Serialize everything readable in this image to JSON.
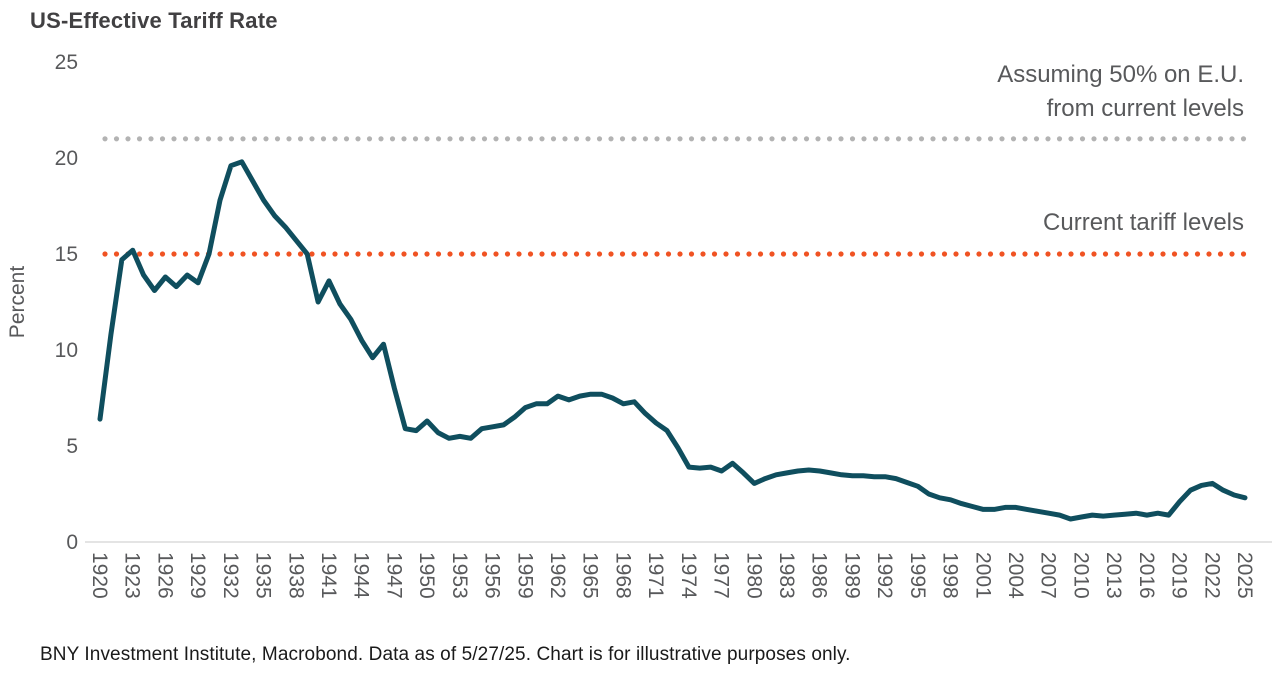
{
  "page": {
    "title": "US-Effective Tariff Rate",
    "source_note": "BNY Investment Institute, Macrobond. Data as of 5/27/25. Chart is for illustrative purposes only."
  },
  "annotations": {
    "assumed_line1": "Assuming 50% on E.U.",
    "assumed_line2": "from current levels",
    "current_label": "Current tariff levels"
  },
  "colors": {
    "line": "#0f4e5e",
    "current_tariff_line": "#f05323",
    "assumed_tariff_line": "#b3b3b3",
    "axis_text": "#58595b",
    "title_text": "#414042",
    "axis_line": "#e4e4e4"
  },
  "chart_data": {
    "type": "line",
    "title": "US-Effective Tariff Rate",
    "xlabel": "",
    "ylabel": "Percent",
    "ylim": [
      0,
      25
    ],
    "yticks": [
      0,
      5,
      10,
      15,
      20,
      25
    ],
    "xticks": [
      1920,
      1923,
      1926,
      1929,
      1932,
      1935,
      1938,
      1941,
      1944,
      1947,
      1950,
      1953,
      1956,
      1959,
      1962,
      1965,
      1968,
      1971,
      1974,
      1977,
      1980,
      1983,
      1986,
      1989,
      1992,
      1995,
      1998,
      2001,
      2004,
      2007,
      2010,
      2013,
      2016,
      2019,
      2022,
      2025
    ],
    "grid": false,
    "legend": "none",
    "x": [
      1920,
      1921,
      1922,
      1923,
      1924,
      1925,
      1926,
      1927,
      1928,
      1929,
      1930,
      1931,
      1932,
      1933,
      1934,
      1935,
      1936,
      1937,
      1938,
      1939,
      1940,
      1941,
      1942,
      1943,
      1944,
      1945,
      1946,
      1947,
      1948,
      1949,
      1950,
      1951,
      1952,
      1953,
      1954,
      1955,
      1956,
      1957,
      1958,
      1959,
      1960,
      1961,
      1962,
      1963,
      1964,
      1965,
      1966,
      1967,
      1968,
      1969,
      1970,
      1971,
      1972,
      1973,
      1974,
      1975,
      1976,
      1977,
      1978,
      1979,
      1980,
      1981,
      1982,
      1983,
      1984,
      1985,
      1986,
      1987,
      1988,
      1989,
      1990,
      1991,
      1992,
      1993,
      1994,
      1995,
      1996,
      1997,
      1998,
      1999,
      2000,
      2001,
      2002,
      2003,
      2004,
      2005,
      2006,
      2007,
      2008,
      2009,
      2010,
      2011,
      2012,
      2013,
      2014,
      2015,
      2016,
      2017,
      2018,
      2019,
      2020,
      2021,
      2022,
      2023,
      2024,
      2025
    ],
    "series": [
      {
        "name": "US effective tariff rate",
        "color": "#0f4e5e",
        "values": [
          6.4,
          10.8,
          14.7,
          15.2,
          13.9,
          13.1,
          13.8,
          13.3,
          13.9,
          13.5,
          15,
          17.8,
          19.6,
          19.8,
          18.8,
          17.8,
          17,
          16.4,
          15.7,
          15,
          12.5,
          13.6,
          12.4,
          11.6,
          10.5,
          9.6,
          10.3,
          8,
          5.9,
          5.8,
          6.3,
          5.7,
          5.4,
          5.5,
          5.4,
          5.9,
          6,
          6.1,
          6.5,
          7,
          7.2,
          7.2,
          7.6,
          7.4,
          7.6,
          7.7,
          7.7,
          7.5,
          7.2,
          7.3,
          6.7,
          6.2,
          5.8,
          4.9,
          3.9,
          3.85,
          3.9,
          3.7,
          4.1,
          3.6,
          3.05,
          3.3,
          3.5,
          3.6,
          3.7,
          3.75,
          3.7,
          3.6,
          3.5,
          3.45,
          3.45,
          3.4,
          3.4,
          3.3,
          3.1,
          2.9,
          2.5,
          2.3,
          2.2,
          2,
          1.85,
          1.7,
          1.7,
          1.8,
          1.8,
          1.7,
          1.6,
          1.5,
          1.4,
          1.2,
          1.3,
          1.4,
          1.35,
          1.4,
          1.45,
          1.5,
          1.4,
          1.5,
          1.4,
          2.1,
          2.7,
          2.95,
          3.05,
          2.7,
          2.45,
          2.3
        ]
      }
    ],
    "reference_lines": [
      {
        "label": "Assuming 50% on E.U. from current levels",
        "value": 21,
        "color": "#b3b3b3",
        "style": "dotted"
      },
      {
        "label": "Current tariff levels",
        "value": 15,
        "color": "#f05323",
        "style": "dotted"
      }
    ]
  }
}
